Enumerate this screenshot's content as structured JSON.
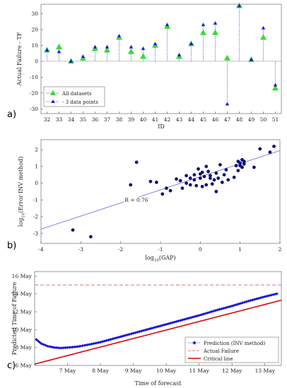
{
  "chart_data": [
    {
      "type": "scatter",
      "panel_label": "a)",
      "xlabel": "ID",
      "ylabel": "Actual Failure - TF",
      "ylim": [
        -33,
        36
      ],
      "yticks": [
        -30,
        -20,
        -10,
        0,
        10,
        20,
        30
      ],
      "categories": [
        32,
        33,
        34,
        35,
        36,
        37,
        38,
        39,
        40,
        41,
        42,
        43,
        44,
        45,
        46,
        47,
        48,
        49,
        50,
        51
      ],
      "grid": false,
      "legend_position": "bottom-left",
      "series": [
        {
          "name": "All datasets",
          "marker": "triangle-up",
          "color": "#33dd33",
          "values": [
            7,
            9,
            0,
            2,
            8,
            7,
            15,
            6,
            3,
            10,
            22,
            3,
            11,
            18,
            18,
            2,
            35,
            1,
            15,
            -17
          ]
        },
        {
          "name": "- 3 data points",
          "marker": "triangle-up",
          "color": "#1a1ad6",
          "values": [
            7,
            6,
            0,
            3,
            9,
            9,
            16,
            9,
            8,
            11,
            23,
            4,
            11,
            23,
            24,
            -27,
            35,
            1,
            21,
            -15
          ]
        }
      ]
    },
    {
      "type": "scatter",
      "panel_label": "b)",
      "xlabel": "log10(GAP)",
      "xlabel_base": "log",
      "xlabel_sub": "10",
      "xlabel_tail": "(GAP)",
      "ylabel": "log10(Error INV method)",
      "ylabel_base": "log",
      "ylabel_sub": "10",
      "ylabel_tail": "(Error INV method)",
      "xlim": [
        -4,
        2
      ],
      "ylim": [
        -3.6,
        2.6
      ],
      "xticks": [
        -4,
        -3,
        -2,
        -1,
        0,
        1,
        2
      ],
      "yticks": [
        -3,
        -2,
        -1,
        0,
        1,
        2
      ],
      "annotation": "R = 0.76",
      "fit_line": {
        "x": [
          -4,
          2
        ],
        "y": [
          -2.75,
          1.95
        ]
      },
      "points": [
        [
          -3.2,
          -2.8
        ],
        [
          -2.75,
          -3.2
        ],
        [
          -1.75,
          -0.1
        ],
        [
          -1.6,
          1.25
        ],
        [
          -1.25,
          0.1
        ],
        [
          -1.1,
          0.05
        ],
        [
          -0.95,
          -0.65
        ],
        [
          -0.85,
          -0.3
        ],
        [
          -0.75,
          -0.45
        ],
        [
          -0.6,
          0.25
        ],
        [
          -0.5,
          0.15
        ],
        [
          -0.45,
          -0.3
        ],
        [
          -0.35,
          0.45
        ],
        [
          -0.35,
          0.0
        ],
        [
          -0.25,
          0.3
        ],
        [
          -0.25,
          -0.1
        ],
        [
          -0.15,
          0.5
        ],
        [
          -0.15,
          0.2
        ],
        [
          -0.1,
          -0.15
        ],
        [
          -0.05,
          0.85
        ],
        [
          0.0,
          0.55
        ],
        [
          0.0,
          0.3
        ],
        [
          0.05,
          -0.2
        ],
        [
          0.05,
          0.65
        ],
        [
          0.1,
          0.4
        ],
        [
          0.15,
          -0.1
        ],
        [
          0.15,
          1.0
        ],
        [
          0.2,
          0.7
        ],
        [
          0.25,
          0.3
        ],
        [
          0.25,
          0.45
        ],
        [
          0.3,
          -0.05
        ],
        [
          0.35,
          0.2
        ],
        [
          0.4,
          0.6
        ],
        [
          0.4,
          -0.5
        ],
        [
          0.45,
          0.3
        ],
        [
          0.5,
          1.1
        ],
        [
          0.55,
          0.05
        ],
        [
          0.6,
          0.5
        ],
        [
          0.65,
          0.8
        ],
        [
          0.7,
          0.2
        ],
        [
          0.85,
          0.35
        ],
        [
          0.9,
          1.05
        ],
        [
          0.95,
          1.3
        ],
        [
          0.95,
          0.75
        ],
        [
          1.0,
          1.2
        ],
        [
          1.0,
          1.05
        ],
        [
          1.05,
          0.95
        ],
        [
          1.05,
          1.4
        ],
        [
          1.1,
          1.3
        ],
        [
          1.1,
          1.15
        ],
        [
          1.35,
          0.95
        ],
        [
          1.5,
          2.05
        ],
        [
          1.75,
          1.85
        ],
        [
          1.85,
          2.2
        ]
      ]
    },
    {
      "type": "line",
      "panel_label": "c)",
      "xlabel": "Time of forecast",
      "ylabel": "Predicted Time of Failure",
      "xlim": [
        6.0,
        13.5
      ],
      "ylim": [
        6.0,
        16.5
      ],
      "xticks": [
        7,
        8,
        9,
        10,
        11,
        12,
        13
      ],
      "xticklabels": [
        "7 May",
        "8 May",
        "9 May",
        "10 May",
        "11 May",
        "12 May",
        "13 May"
      ],
      "yticks": [
        6,
        8,
        10,
        12,
        14,
        16
      ],
      "yticklabels": [
        "6 May",
        "8 May",
        "10 May",
        "12 May",
        "14 May",
        "16 May"
      ],
      "legend_position": "bottom-right",
      "series": [
        {
          "name": "Prediction (INV method)",
          "style": "diamond-markers",
          "color": "#1a1ad6",
          "x": [
            6.05,
            6.2,
            6.4,
            6.6,
            6.8,
            7.0,
            7.3,
            7.6,
            8.0,
            8.5,
            9.0,
            9.5,
            10.0,
            10.5,
            11.0,
            11.5,
            12.0,
            12.5,
            13.0,
            13.4
          ],
          "y": [
            8.9,
            8.45,
            8.15,
            8.0,
            7.95,
            8.0,
            8.1,
            8.3,
            8.6,
            9.1,
            9.6,
            10.1,
            10.6,
            11.1,
            11.6,
            12.15,
            12.65,
            13.2,
            13.7,
            14.05
          ]
        },
        {
          "name": "Actual Failure",
          "style": "dashed",
          "color": "#e87070",
          "x": [
            6.0,
            13.5
          ],
          "y": [
            15.0,
            15.0
          ]
        },
        {
          "name": "Critical line",
          "style": "solid",
          "color": "#e00000",
          "x": [
            6.0,
            13.5
          ],
          "y": [
            6.15,
            13.3
          ]
        }
      ]
    }
  ]
}
